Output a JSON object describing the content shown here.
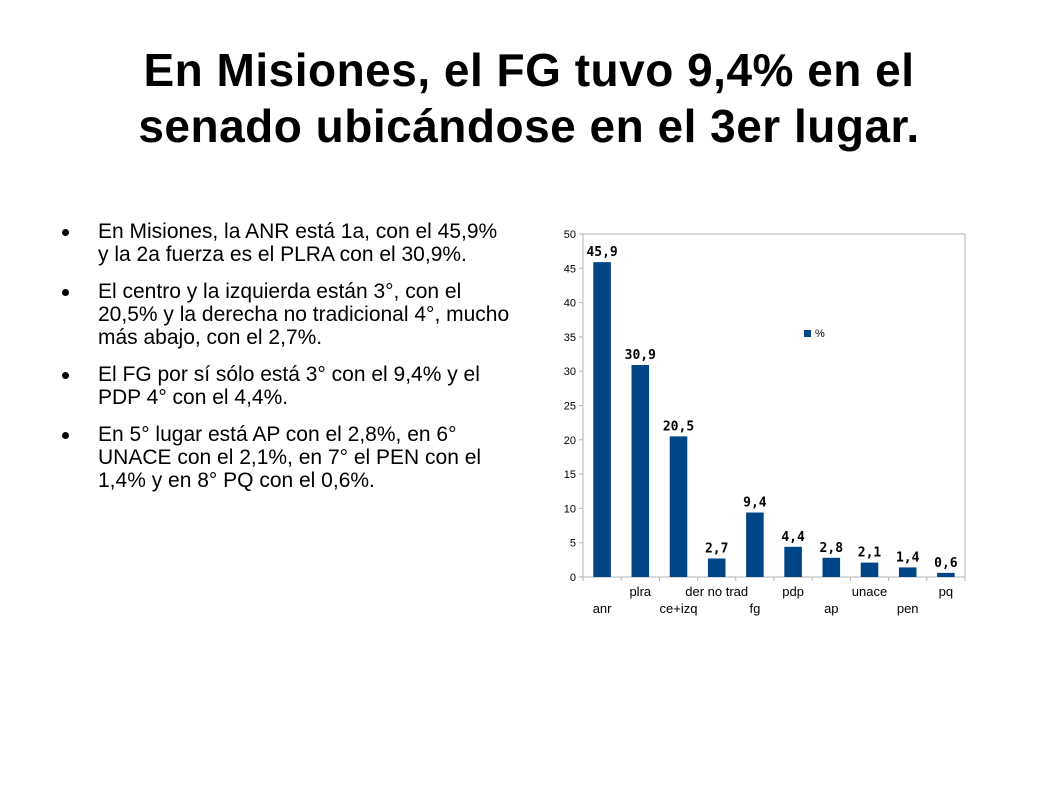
{
  "slide": {
    "title_line1": "En Misiones, el FG tuvo 9,4% en el",
    "title_line2": "senado ubicándose en el 3er lugar.",
    "bullets": [
      "En Misiones, la ANR está 1a, con el 45,9% y la 2a fuerza es el PLRA con el 30,9%.",
      "El centro y la izquierda están 3°, con el 20,5% y la derecha no tradicional 4°, mucho más abajo, con el 2,7%.",
      "El FG por sí sólo está 3° con el 9,4% y el PDP 4° con el 4,4%.",
      "En 5° lugar está AP con el 2,8%, en 6° UNACE con el 2,1%, en 7° el PEN con el 1,4% y en 8° PQ con el 0,6%."
    ]
  },
  "chart_data": {
    "type": "bar",
    "categories": [
      "anr",
      "plra",
      "ce+izq",
      "der no trad",
      "fg",
      "pdp",
      "ap",
      "unace",
      "pen",
      "pq"
    ],
    "series": [
      {
        "name": "%",
        "values": [
          45.9,
          30.9,
          20.5,
          2.7,
          9.4,
          4.4,
          2.8,
          2.1,
          1.4,
          0.6
        ],
        "color": "#004586"
      }
    ],
    "data_labels": [
      "45,9",
      "30,9",
      "20,5",
      "2,7",
      "9,4",
      "4,4",
      "2,8",
      "2,1",
      "1,4",
      "0,6"
    ],
    "yticks": [
      "0",
      "5",
      "10",
      "15",
      "20",
      "25",
      "30",
      "35",
      "40",
      "45",
      "50"
    ],
    "ylim": [
      0,
      50
    ],
    "grid": false,
    "legend": "top-right inside plot",
    "title": "",
    "xlabel": "",
    "ylabel": ""
  }
}
